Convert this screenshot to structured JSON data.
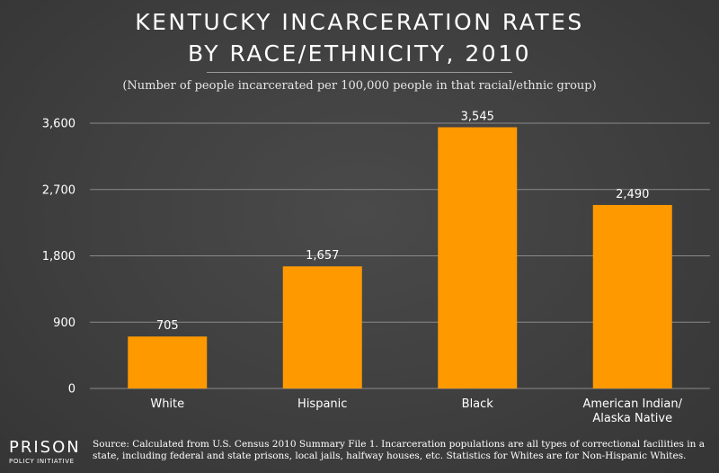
{
  "header": {
    "title_line_1": "KENTUCKY INCARCERATION RATES",
    "title_line_2": "BY RACE/ETHNICITY, 2010",
    "subtitle": "(Number of people incarcerated per 100,000 people in that racial/ethnic group)"
  },
  "chart_data": {
    "type": "bar",
    "title": "KENTUCKY INCARCERATION RATES BY RACE/ETHNICITY, 2010",
    "subtitle": "(Number of people incarcerated per 100,000 people in that racial/ethnic group)",
    "categories": [
      [
        "White"
      ],
      [
        "Hispanic"
      ],
      [
        "Black"
      ],
      [
        "American Indian/",
        "Alaska Native"
      ]
    ],
    "values": [
      705,
      1657,
      3545,
      2490
    ],
    "value_labels": [
      "705",
      "1,657",
      "3,545",
      "2,490"
    ],
    "ylim": [
      0,
      3600
    ],
    "yticks": [
      0,
      900,
      1800,
      2700,
      3600
    ],
    "ytick_labels": [
      "0",
      "900",
      "1,800",
      "2,700",
      "3,600"
    ],
    "xlabel": "",
    "ylabel": "",
    "grid": true,
    "bar_color": "#ff9900",
    "grid_color": "#8a8a8a"
  },
  "footer": {
    "logo_main": "PRISON",
    "logo_sub": "POLICY INITIATIVE",
    "source_line_1": "Source: Calculated from U.S. Census 2010 Summary File 1. Incarceration populations are all types of correctional facilities in a",
    "source_line_2": "state, including federal and state prisons, local jails, halfway houses, etc. Statistics for Whites are for Non-Hispanic Whites."
  }
}
